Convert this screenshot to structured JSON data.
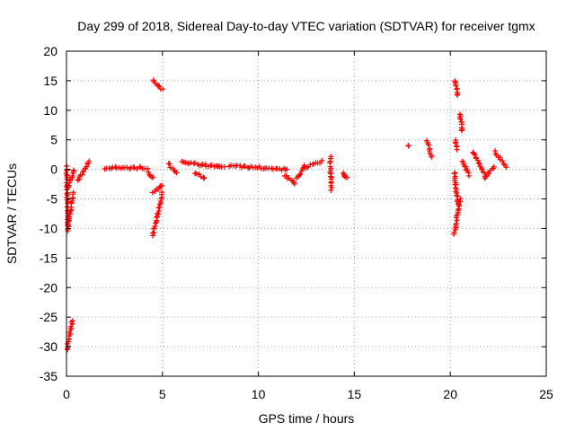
{
  "chart_data": {
    "type": "scatter",
    "title": "Day 299 of 2018, Sidereal Day-to-day VTEC variation (SDTVAR) for receiver tgmx",
    "xlabel": "GPS time / hours",
    "ylabel": "SDTVAR / TECUs",
    "xlim": [
      0,
      25
    ],
    "ylim": [
      -35,
      20
    ],
    "xticks": [
      0,
      5,
      10,
      15,
      20,
      25
    ],
    "yticks": [
      -35,
      -30,
      -25,
      -20,
      -15,
      -10,
      -5,
      0,
      5,
      10,
      15,
      20
    ],
    "grid": true,
    "marker": "plus",
    "color": "#ff0000",
    "segments": [
      {
        "x0": 0.0,
        "x1": 0.08,
        "y0": 0.5,
        "y1": -10.5
      },
      {
        "x0": 0.03,
        "x1": 0.3,
        "y0": -30.5,
        "y1": -25.5
      },
      {
        "x0": 0.1,
        "x1": 0.35,
        "y0": -9.5,
        "y1": -4.0
      },
      {
        "x0": 0.1,
        "x1": 0.4,
        "y0": -3.0,
        "y1": 0.0
      },
      {
        "x0": 0.6,
        "x1": 1.2,
        "y0": -2.0,
        "y1": 1.5
      },
      {
        "x0": 2.0,
        "x1": 4.2,
        "y0": 0.2,
        "y1": 0.3
      },
      {
        "x0": 4.25,
        "x1": 4.5,
        "y0": -0.5,
        "y1": -1.5
      },
      {
        "x0": 4.5,
        "x1": 5.0,
        "y0": 15.2,
        "y1": 13.5
      },
      {
        "x0": 4.5,
        "x1": 5.0,
        "y0": -3.8,
        "y1": -2.8
      },
      {
        "x0": 4.5,
        "x1": 5.0,
        "y0": -11.2,
        "y1": -4.0
      },
      {
        "x0": 5.3,
        "x1": 5.7,
        "y0": 1.0,
        "y1": -0.5
      },
      {
        "x0": 6.0,
        "x1": 8.2,
        "y0": 1.2,
        "y1": 0.3
      },
      {
        "x0": 6.7,
        "x1": 7.2,
        "y0": -0.5,
        "y1": -1.5
      },
      {
        "x0": 8.5,
        "x1": 11.5,
        "y0": 0.6,
        "y1": 0.0
      },
      {
        "x0": 11.4,
        "x1": 11.9,
        "y0": -1.0,
        "y1": -2.5
      },
      {
        "x0": 12.0,
        "x1": 12.4,
        "y0": -1.5,
        "y1": 0.5
      },
      {
        "x0": 12.4,
        "x1": 13.3,
        "y0": 0.3,
        "y1": 1.3
      },
      {
        "x0": 13.75,
        "x1": 13.8,
        "y0": 2.0,
        "y1": -3.5
      },
      {
        "x0": 14.4,
        "x1": 14.6,
        "y0": -0.5,
        "y1": -1.5
      },
      {
        "x0": 17.8,
        "x1": 17.8,
        "y0": 4.0,
        "y1": 4.0
      },
      {
        "x0": 18.8,
        "x1": 19.0,
        "y0": 5.0,
        "y1": 2.0
      },
      {
        "x0": 20.25,
        "x1": 20.4,
        "y0": 15.0,
        "y1": 12.5
      },
      {
        "x0": 20.5,
        "x1": 20.6,
        "y0": 9.5,
        "y1": 6.5
      },
      {
        "x0": 20.25,
        "x1": 20.35,
        "y0": 5.0,
        "y1": 3.5
      },
      {
        "x0": 20.2,
        "x1": 20.4,
        "y0": -0.5,
        "y1": -6.0
      },
      {
        "x0": 20.2,
        "x1": 20.5,
        "y0": -11.0,
        "y1": -5.0
      },
      {
        "x0": 20.6,
        "x1": 21.0,
        "y0": 1.5,
        "y1": -1.0
      },
      {
        "x0": 21.2,
        "x1": 21.8,
        "y0": 3.0,
        "y1": -1.0
      },
      {
        "x0": 21.8,
        "x1": 22.3,
        "y0": -1.5,
        "y1": 0.5
      },
      {
        "x0": 22.3,
        "x1": 22.9,
        "y0": 3.0,
        "y1": 0.5
      }
    ]
  }
}
